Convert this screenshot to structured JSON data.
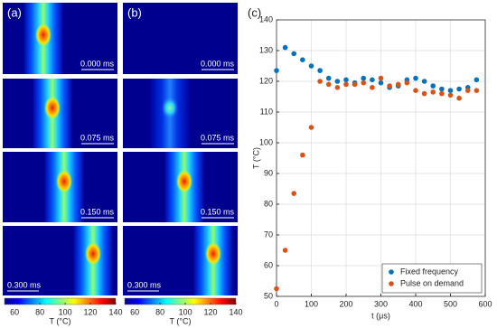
{
  "panels": {
    "labels": [
      "(a)",
      "(b)"
    ],
    "times": [
      "0.000 ms",
      "0.075 ms",
      "0.150 ms",
      "0.300 ms"
    ]
  },
  "colorbar": {
    "lim": [
      52,
      140
    ],
    "ticks": [
      60,
      80,
      100,
      120,
      140
    ],
    "label": "T (°C)"
  },
  "chart_data": {
    "type": "scatter",
    "label": "(c)",
    "x": [
      0,
      25,
      50,
      75,
      100,
      125,
      150,
      175,
      200,
      225,
      250,
      275,
      300,
      325,
      350,
      375,
      400,
      425,
      450,
      475,
      500,
      525,
      550,
      575
    ],
    "series": [
      {
        "name": "Fixed frequency",
        "color": "#0072bd",
        "values": [
          123.5,
          131,
          129,
          127,
          125,
          123.5,
          121,
          120,
          120.5,
          119.5,
          121,
          120.5,
          119.5,
          118,
          118.5,
          120.5,
          121,
          120,
          118.5,
          117.5,
          117,
          117.5,
          118,
          120.5
        ]
      },
      {
        "name": "Pulse on demand",
        "color": "#d95319",
        "values": [
          52.5,
          65,
          83.5,
          96,
          105,
          120,
          119,
          118,
          119,
          119,
          119.5,
          118,
          121,
          118.5,
          119,
          119.5,
          117,
          116,
          116.5,
          116,
          115.5,
          114.5,
          117,
          117
        ]
      }
    ],
    "xlabel": "t (μs)",
    "ylabel": "T (°C)",
    "xlim": [
      0,
      600
    ],
    "xticks": [
      0,
      100,
      200,
      300,
      400,
      500,
      600
    ],
    "ylim": [
      50,
      140
    ],
    "yticks": [
      50,
      60,
      70,
      80,
      90,
      100,
      110,
      120,
      130,
      140
    ],
    "grid": true,
    "legend": "lower right"
  }
}
